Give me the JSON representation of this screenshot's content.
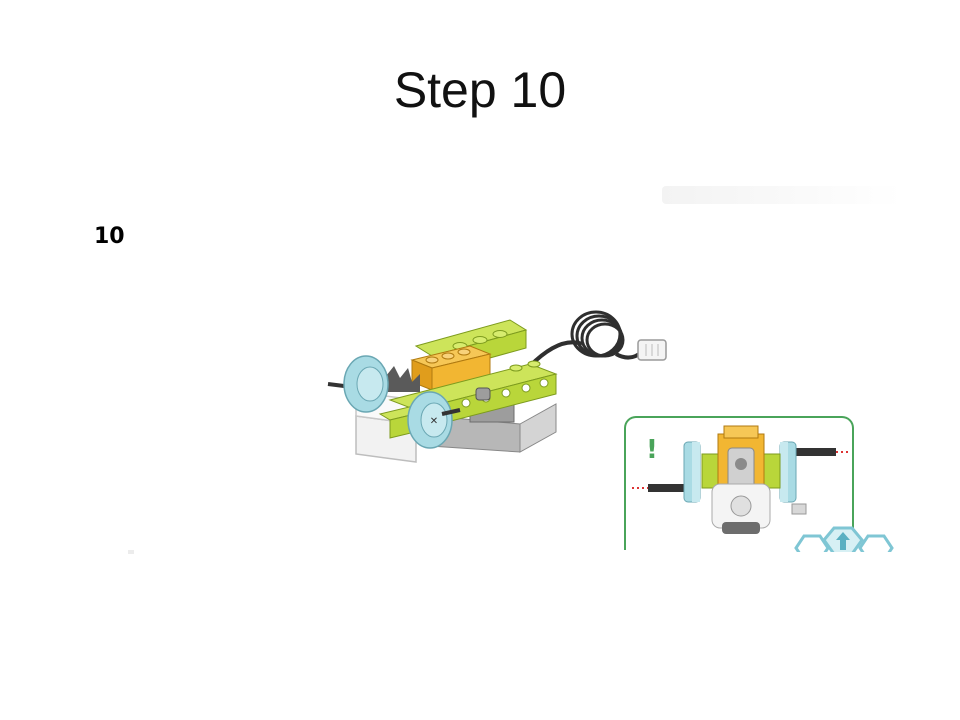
{
  "slide": {
    "title": "Step 10"
  },
  "instruction": {
    "step_number": "10",
    "inset_callout_symbol": "!",
    "colors": {
      "inset_border": "#4aa45a",
      "brick_lime": "#b9d63a",
      "brick_orange": "#f2b632",
      "wheel_cyan": "#a9dbe4",
      "motor_grey": "#c9c9c9",
      "cable_dark": "#333333"
    },
    "icons": [
      "lego-model-icon",
      "exclamation-icon",
      "hex-up-arrow-icon"
    ]
  }
}
